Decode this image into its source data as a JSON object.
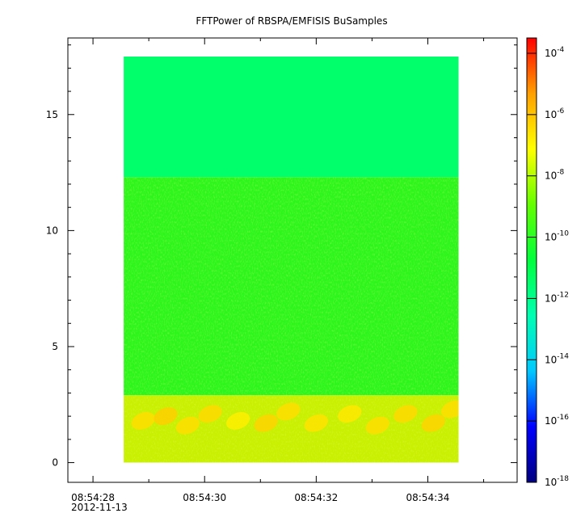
{
  "chart_data": {
    "type": "heatmap",
    "title": "FFTPower of RBSPA/EMFISIS  BuSamples",
    "xlabel": "",
    "ylabel": "",
    "x_axis": {
      "kind": "time",
      "date_label": "2012-11-13",
      "tick_labels": [
        "08:54:28",
        "08:54:30",
        "08:54:32",
        "08:54:34"
      ],
      "major_ticks_s": [
        28,
        30,
        32,
        34
      ],
      "minor_ticks_s": [
        29,
        31,
        33,
        35
      ],
      "range_s": [
        27.55,
        35.6
      ],
      "data_extent_s": [
        28.55,
        34.55
      ]
    },
    "y_axis": {
      "ticks": [
        0,
        5,
        10,
        15
      ],
      "tick_labels": [
        "0",
        "5",
        "10",
        "15"
      ],
      "range": [
        -0.85,
        18.3
      ],
      "data_extent": [
        0,
        17.5
      ]
    },
    "colorbar": {
      "scale": "log",
      "range_exponent": [
        -18,
        -3.5
      ],
      "tick_exponents": [
        -4,
        -6,
        -8,
        -10,
        -12,
        -14,
        -16,
        -18
      ],
      "tick_base": "10",
      "colormap": [
        "#00007f",
        "#0000ff",
        "#00c8ff",
        "#00ffb2",
        "#00ff3c",
        "#64ff00",
        "#ffff00",
        "#ffa000",
        "#ff0000"
      ]
    },
    "regions": [
      {
        "y_range": [
          12.3,
          17.5
        ],
        "log_power": -12.8,
        "color": "#00ff6a"
      },
      {
        "y_range": [
          2.9,
          12.3
        ],
        "log_power": -10.5,
        "color": "#2cf51c"
      },
      {
        "y_range": [
          0,
          2.9
        ],
        "log_power": -8.5,
        "color": "#c8f000"
      }
    ],
    "bursts": [
      {
        "t": 28.9,
        "f": 1.8,
        "log_power": -6.5
      },
      {
        "t": 29.3,
        "f": 2.0,
        "log_power": -6.2
      },
      {
        "t": 29.7,
        "f": 1.6,
        "log_power": -6.5
      },
      {
        "t": 30.1,
        "f": 2.1,
        "log_power": -6.4
      },
      {
        "t": 30.6,
        "f": 1.8,
        "log_power": -6.8
      },
      {
        "t": 31.1,
        "f": 1.7,
        "log_power": -6.3
      },
      {
        "t": 31.5,
        "f": 2.2,
        "log_power": -6.5
      },
      {
        "t": 32.0,
        "f": 1.7,
        "log_power": -6.6
      },
      {
        "t": 32.6,
        "f": 2.1,
        "log_power": -6.7
      },
      {
        "t": 33.1,
        "f": 1.6,
        "log_power": -6.5
      },
      {
        "t": 33.6,
        "f": 2.1,
        "log_power": -6.4
      },
      {
        "t": 34.1,
        "f": 1.7,
        "log_power": -6.3
      },
      {
        "t": 34.45,
        "f": 2.3,
        "log_power": -6.5
      }
    ]
  }
}
